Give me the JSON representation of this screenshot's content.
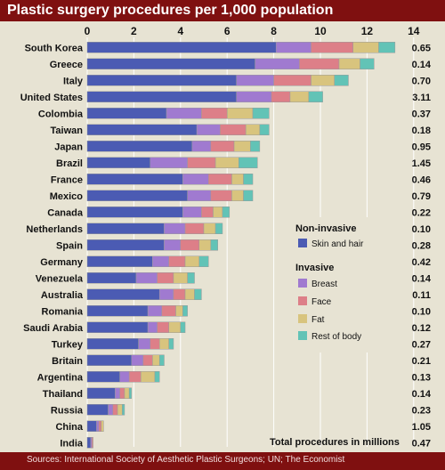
{
  "title": "Plastic surgery procedures per 1,000 population",
  "source": "Sources: International Society of Aesthetic Plastic Surgeons; UN; The Economist",
  "total_header": "Total procedures in millions",
  "legend": {
    "noninvasive_title": "Non-invasive",
    "invasive_title": "Invasive",
    "items": [
      {
        "key": "skin",
        "label": "Skin and hair",
        "color": "#4b5bb3"
      },
      {
        "key": "breast",
        "label": "Breast",
        "color": "#a07ad0"
      },
      {
        "key": "face",
        "label": "Face",
        "color": "#dd7f88"
      },
      {
        "key": "fat",
        "label": "Fat",
        "color": "#d8c47e"
      },
      {
        "key": "rest",
        "label": "Rest of body",
        "color": "#62c3b6"
      }
    ]
  },
  "chart_data": {
    "type": "bar",
    "orientation": "horizontal",
    "stacked": true,
    "title": "Plastic surgery procedures per 1,000 population",
    "xlim": [
      0,
      14
    ],
    "xticks": [
      0,
      2,
      4,
      6,
      8,
      10,
      12,
      14
    ],
    "grid": true,
    "legend_position": "right",
    "categories": [
      "South Korea",
      "Greece",
      "Italy",
      "United States",
      "Colombia",
      "Taiwan",
      "Japan",
      "Brazil",
      "France",
      "Mexico",
      "Canada",
      "Netherlands",
      "Spain",
      "Germany",
      "Venezuela",
      "Australia",
      "Romania",
      "Saudi Arabia",
      "Turkey",
      "Britain",
      "Argentina",
      "Thailand",
      "Russia",
      "China",
      "India"
    ],
    "series": [
      {
        "name": "Skin and hair",
        "values": [
          8.1,
          7.2,
          6.4,
          6.4,
          3.4,
          4.7,
          4.5,
          2.7,
          4.1,
          4.3,
          4.1,
          3.3,
          3.3,
          2.8,
          2.1,
          3.1,
          2.6,
          2.6,
          2.2,
          1.9,
          1.4,
          1.2,
          0.9,
          0.4,
          0.15
        ]
      },
      {
        "name": "Breast",
        "values": [
          1.5,
          1.9,
          1.6,
          1.5,
          1.5,
          1.0,
          0.8,
          1.6,
          1.1,
          1.0,
          0.8,
          0.9,
          0.7,
          0.7,
          0.9,
          0.6,
          0.6,
          0.4,
          0.5,
          0.5,
          0.4,
          0.2,
          0.2,
          0.1,
          0.05
        ]
      },
      {
        "name": "Face",
        "values": [
          1.8,
          1.7,
          1.6,
          0.8,
          1.1,
          1.1,
          1.0,
          1.2,
          1.0,
          0.9,
          0.5,
          0.8,
          0.8,
          0.7,
          0.7,
          0.5,
          0.6,
          0.5,
          0.4,
          0.4,
          0.5,
          0.2,
          0.2,
          0.1,
          0.05
        ]
      },
      {
        "name": "Fat",
        "values": [
          1.1,
          0.9,
          1.0,
          0.8,
          1.1,
          0.6,
          0.7,
          1.0,
          0.5,
          0.5,
          0.4,
          0.5,
          0.5,
          0.6,
          0.6,
          0.4,
          0.3,
          0.5,
          0.4,
          0.3,
          0.6,
          0.2,
          0.2,
          0.1,
          0.0
        ]
      },
      {
        "name": "Rest of body",
        "values": [
          0.7,
          0.6,
          0.6,
          0.6,
          0.7,
          0.4,
          0.4,
          0.8,
          0.4,
          0.4,
          0.3,
          0.3,
          0.3,
          0.4,
          0.3,
          0.3,
          0.2,
          0.2,
          0.2,
          0.2,
          0.2,
          0.1,
          0.1,
          0.0,
          0.0
        ]
      }
    ],
    "totals_millions": [
      "0.65",
      "0.14",
      "0.70",
      "3.11",
      "0.37",
      "0.18",
      "0.95",
      "1.45",
      "0.46",
      "0.79",
      "0.22",
      "0.10",
      "0.28",
      "0.42",
      "0.14",
      "0.11",
      "0.10",
      "0.12",
      "0.27",
      "0.21",
      "0.13",
      "0.14",
      "0.23",
      "1.05",
      "0.47"
    ]
  }
}
